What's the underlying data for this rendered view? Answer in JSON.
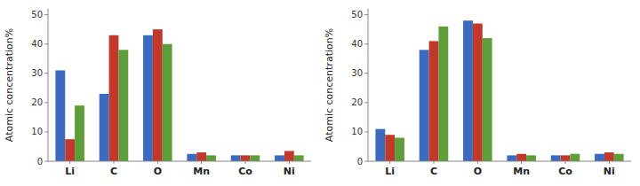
{
  "chart_data": [
    {
      "type": "bar",
      "categories": [
        "Li",
        "C",
        "O",
        "Mn",
        "Co",
        "Ni"
      ],
      "series": [
        {
          "color": "#3a6bbf",
          "values": [
            31,
            23,
            43,
            2.5,
            2.0,
            2.0
          ]
        },
        {
          "color": "#c0392b",
          "values": [
            7.5,
            43,
            45,
            3.0,
            2.0,
            3.5
          ]
        },
        {
          "color": "#5d9e3a",
          "values": [
            19,
            38,
            40,
            2.0,
            2.0,
            2.0
          ]
        }
      ],
      "ylabel": "Atomic concentration%",
      "ylim": [
        0,
        52
      ],
      "yticks": [
        0,
        10,
        20,
        30,
        40,
        50
      ],
      "grid": false
    },
    {
      "type": "bar",
      "categories": [
        "Li",
        "C",
        "O",
        "Mn",
        "Co",
        "Ni"
      ],
      "series": [
        {
          "color": "#3a6bbf",
          "values": [
            11,
            38,
            48,
            2.0,
            2.0,
            2.5
          ]
        },
        {
          "color": "#c0392b",
          "values": [
            9.0,
            41,
            47,
            2.5,
            2.0,
            3.0
          ]
        },
        {
          "color": "#5d9e3a",
          "values": [
            8.0,
            46,
            42,
            2.0,
            2.5,
            2.5
          ]
        }
      ],
      "ylabel": "Atomic concentration%",
      "ylim": [
        0,
        52
      ],
      "yticks": [
        0,
        10,
        20,
        30,
        40,
        50
      ],
      "grid": false
    }
  ]
}
